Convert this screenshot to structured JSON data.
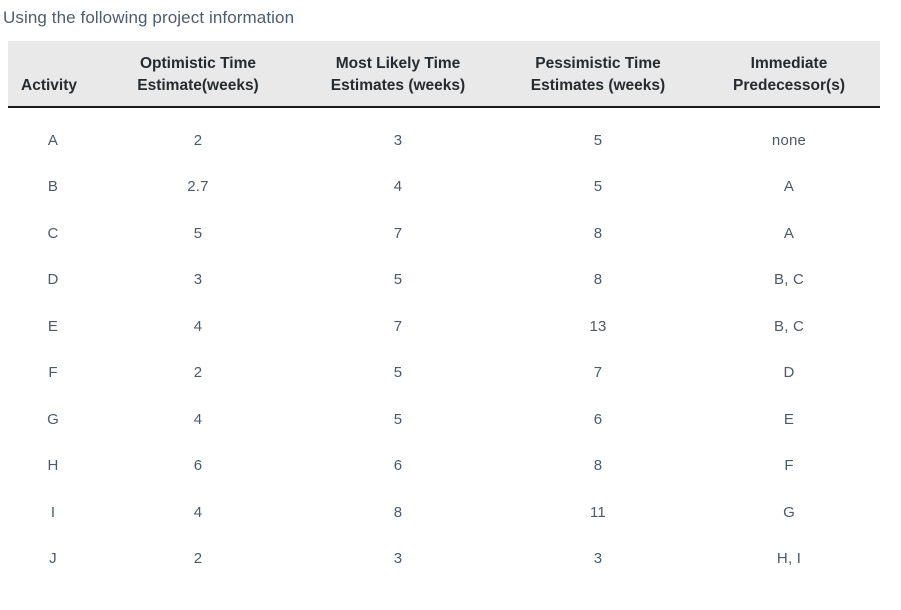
{
  "title": "Using the following project information",
  "table": {
    "headers": [
      "Activity",
      "Optimistic Time\nEstimate(weeks)",
      "Most Likely Time\nEstimates (weeks)",
      "Pessimistic Time\nEstimates (weeks)",
      "Immediate\nPredecessor(s)"
    ],
    "rows": [
      [
        "A",
        "2",
        "3",
        "5",
        "none"
      ],
      [
        "B",
        "2.7",
        "4",
        "5",
        "A"
      ],
      [
        "C",
        "5",
        "7",
        "8",
        "A"
      ],
      [
        "D",
        "3",
        "5",
        "8",
        "B, C"
      ],
      [
        "E",
        "4",
        "7",
        "13",
        "B, C"
      ],
      [
        "F",
        "2",
        "5",
        "7",
        "D"
      ],
      [
        "G",
        "4",
        "5",
        "6",
        "E"
      ],
      [
        "H",
        "6",
        "6",
        "8",
        "F"
      ],
      [
        "I",
        "4",
        "8",
        "11",
        "G"
      ],
      [
        "J",
        "2",
        "3",
        "3",
        "H, I"
      ]
    ]
  },
  "colors": {
    "header_background": "#e9e9e9",
    "header_text": "#262b2f",
    "header_border": "#1b1b1b",
    "body_text": "#4d5a68",
    "title_text": "#4e5d6e"
  }
}
